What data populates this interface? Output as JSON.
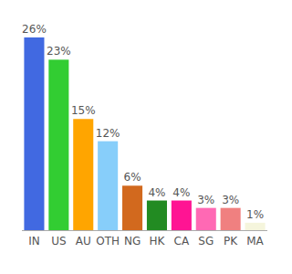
{
  "chart_data": {
    "type": "bar",
    "categories": [
      "IN",
      "US",
      "AU",
      "OTH",
      "NG",
      "HK",
      "CA",
      "SG",
      "PK",
      "MA"
    ],
    "values": [
      26,
      23,
      15,
      12,
      6,
      4,
      4,
      3,
      3,
      1
    ],
    "value_labels": [
      "26%",
      "23%",
      "15%",
      "12%",
      "6%",
      "4%",
      "4%",
      "3%",
      "3%",
      "1%"
    ],
    "colors": [
      "#4169e1",
      "#32cd32",
      "#ffa500",
      "#87cefa",
      "#d2691e",
      "#228b22",
      "#ff1493",
      "#ff69b4",
      "#f08080",
      "#f5f5dc"
    ],
    "ylim": [
      0,
      26
    ],
    "data_labels": true,
    "tick_labels": "x",
    "grid": false
  }
}
